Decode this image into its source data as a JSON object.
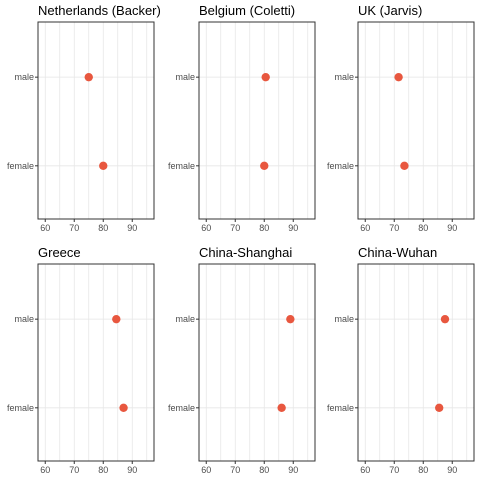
{
  "chart_data": [
    {
      "type": "scatter",
      "title": "Netherlands (Backer)",
      "categories": [
        "male",
        "female"
      ],
      "values": [
        75,
        80
      ],
      "xlim": [
        57.5,
        97.5
      ],
      "xticks": [
        "60",
        "70",
        "80",
        "90"
      ],
      "xlabel": "",
      "ylabel": ""
    },
    {
      "type": "scatter",
      "title": "Belgium (Coletti)",
      "categories": [
        "male",
        "female"
      ],
      "values": [
        80.5,
        80
      ],
      "xlim": [
        57.5,
        97.5
      ],
      "xticks": [
        "60",
        "70",
        "80",
        "90"
      ],
      "xlabel": "",
      "ylabel": ""
    },
    {
      "type": "scatter",
      "title": "UK (Jarvis)",
      "categories": [
        "male",
        "female"
      ],
      "values": [
        71.5,
        73.5
      ],
      "xlim": [
        57.5,
        97.5
      ],
      "xticks": [
        "60",
        "70",
        "80",
        "90"
      ],
      "xlabel": "",
      "ylabel": ""
    },
    {
      "type": "scatter",
      "title": "Greece",
      "categories": [
        "male",
        "female"
      ],
      "values": [
        84.5,
        87
      ],
      "xlim": [
        57.5,
        97.5
      ],
      "xticks": [
        "60",
        "70",
        "80",
        "90"
      ],
      "xlabel": "",
      "ylabel": ""
    },
    {
      "type": "scatter",
      "title": "China-Shanghai",
      "categories": [
        "male",
        "female"
      ],
      "values": [
        89,
        86
      ],
      "xlim": [
        57.5,
        97.5
      ],
      "xticks": [
        "60",
        "70",
        "80",
        "90"
      ],
      "xlabel": "",
      "ylabel": ""
    },
    {
      "type": "scatter",
      "title": "China-Wuhan",
      "categories": [
        "male",
        "female"
      ],
      "values": [
        87.5,
        85.5
      ],
      "xlim": [
        57.5,
        97.5
      ],
      "xticks": [
        "60",
        "70",
        "80",
        "90"
      ],
      "xlabel": "",
      "ylabel": ""
    }
  ],
  "colors": {
    "point": "#e8573f"
  }
}
